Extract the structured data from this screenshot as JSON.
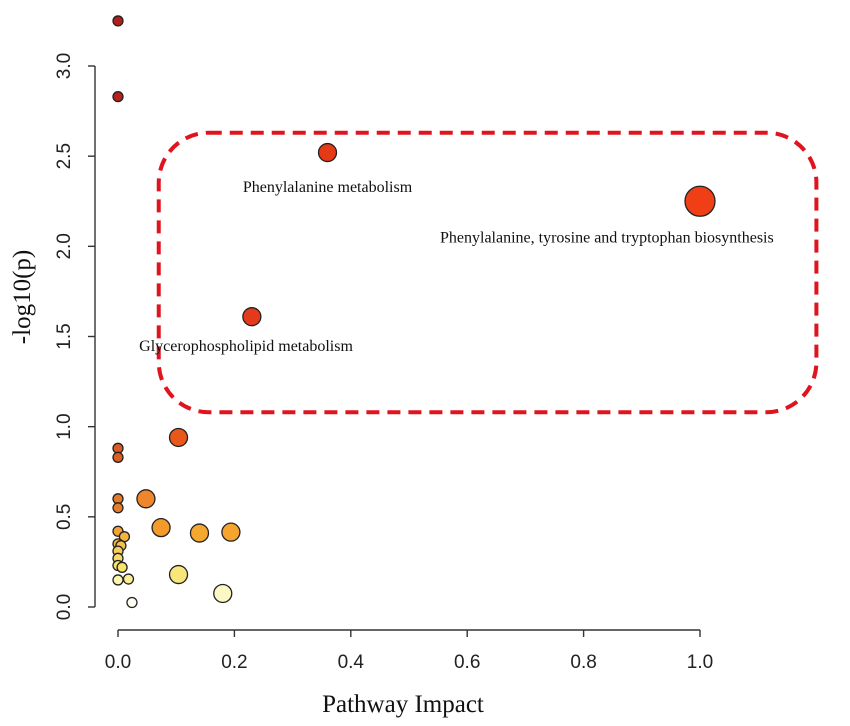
{
  "chart_data": {
    "type": "scatter",
    "xlabel": "Pathway Impact",
    "ylabel": "-log10(p)",
    "xlim": [
      0.0,
      1.0
    ],
    "ylim": [
      0.0,
      3.0
    ],
    "x_ticks": [
      "0.0",
      "0.2",
      "0.4",
      "0.6",
      "0.8",
      "1.0"
    ],
    "y_ticks": [
      "0.0",
      "0.5",
      "1.0",
      "1.5",
      "2.0",
      "2.5",
      "3.0"
    ],
    "points": [
      {
        "x": 0.0,
        "y": 3.25,
        "size": "small",
        "color": "#b0201a"
      },
      {
        "x": 0.0,
        "y": 2.83,
        "size": "small",
        "color": "#b3221b"
      },
      {
        "x": 0.36,
        "y": 2.52,
        "size": "medium",
        "color": "#e43a16"
      },
      {
        "x": 1.0,
        "y": 2.25,
        "size": "large",
        "color": "#f03f16"
      },
      {
        "x": 0.23,
        "y": 1.61,
        "size": "medium",
        "color": "#e4391a"
      },
      {
        "x": 0.104,
        "y": 0.94,
        "size": "medium",
        "color": "#e8581a"
      },
      {
        "x": 0.0,
        "y": 0.88,
        "size": "small",
        "color": "#dc5a24"
      },
      {
        "x": 0.0,
        "y": 0.83,
        "size": "small",
        "color": "#dc5e24"
      },
      {
        "x": 0.0,
        "y": 0.6,
        "size": "small",
        "color": "#e37a2a"
      },
      {
        "x": 0.0,
        "y": 0.55,
        "size": "small",
        "color": "#e37d2c"
      },
      {
        "x": 0.048,
        "y": 0.6,
        "size": "medium",
        "color": "#ef862c"
      },
      {
        "x": 0.074,
        "y": 0.44,
        "size": "medium",
        "color": "#f39a2c"
      },
      {
        "x": 0.14,
        "y": 0.41,
        "size": "medium",
        "color": "#f5a830"
      },
      {
        "x": 0.194,
        "y": 0.415,
        "size": "medium",
        "color": "#f5a52e"
      },
      {
        "x": 0.0,
        "y": 0.42,
        "size": "small",
        "color": "#f1a538"
      },
      {
        "x": 0.011,
        "y": 0.39,
        "size": "small",
        "color": "#f3b33c"
      },
      {
        "x": 0.0,
        "y": 0.35,
        "size": "small",
        "color": "#f2b53f"
      },
      {
        "x": 0.005,
        "y": 0.34,
        "size": "small",
        "color": "#f4c150"
      },
      {
        "x": 0.0,
        "y": 0.31,
        "size": "small",
        "color": "#f5cf5c"
      },
      {
        "x": 0.0,
        "y": 0.27,
        "size": "small",
        "color": "#f7d86a"
      },
      {
        "x": 0.0,
        "y": 0.23,
        "size": "small",
        "color": "#f9e36f"
      },
      {
        "x": 0.007,
        "y": 0.22,
        "size": "small",
        "color": "#f6e46b"
      },
      {
        "x": 0.104,
        "y": 0.18,
        "size": "medium",
        "color": "#f8e67a"
      },
      {
        "x": 0.018,
        "y": 0.155,
        "size": "small",
        "color": "#fbef96"
      },
      {
        "x": 0.0,
        "y": 0.15,
        "size": "small",
        "color": "#fcf5b0"
      },
      {
        "x": 0.18,
        "y": 0.075,
        "size": "medium",
        "color": "#fdf6c5"
      },
      {
        "x": 0.024,
        "y": 0.025,
        "size": "small",
        "color": "#fffdf0"
      }
    ],
    "annotations": [
      {
        "text": "Phenylalanine metabolism",
        "x": 0.36,
        "y": 2.3
      },
      {
        "text": "Phenylalanine, tyrosine and tryptophan biosynthesis",
        "x": 0.84,
        "y": 2.02
      },
      {
        "text": "Glycerophospholipid metabolism",
        "x": 0.22,
        "y": 1.42
      }
    ],
    "highlight_box": {
      "x_range": [
        0.07,
        1.2
      ],
      "y_range": [
        1.08,
        2.63
      ],
      "style": "dashed",
      "color": "#e0141e"
    }
  }
}
